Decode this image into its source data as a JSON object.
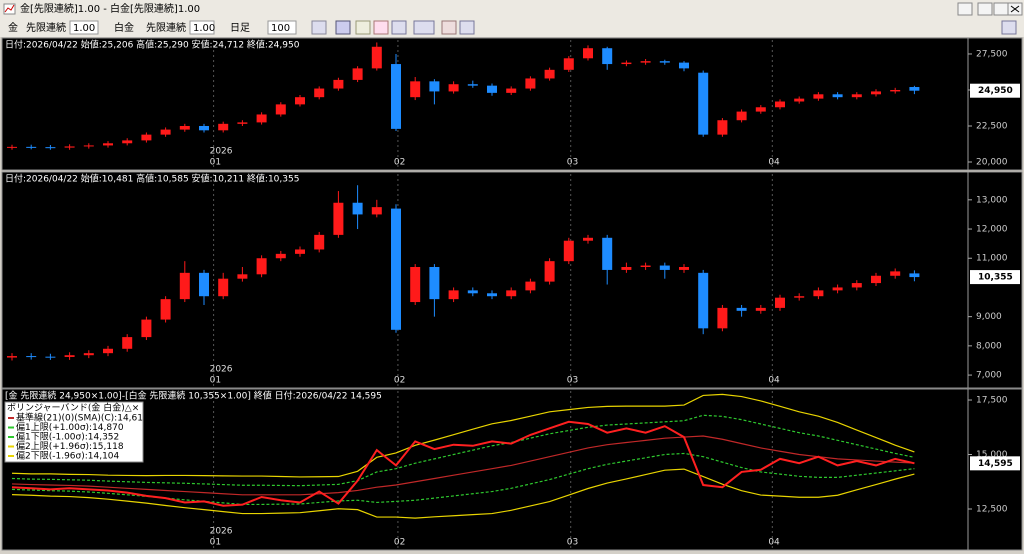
{
  "window": {
    "title": "金[先限連続]1.00 - 白金[先限連続]1.00"
  },
  "toolbar": {
    "symbol1": "金",
    "contract1": "先限連続",
    "mult1": "1.00",
    "symbol2": "白金",
    "contract2": "先限連続",
    "mult2": "1.00",
    "period": "日足",
    "count": "100"
  },
  "chart_data": [
    {
      "type": "candlestick",
      "header": "日付:2026/04/22 始値:25,206 高値:25,290 安値:24,712 終値:24,950",
      "up_color": "#ff1a1a",
      "down_color": "#1e8cff",
      "open": [
        21000,
        21050,
        21030,
        21000,
        21080,
        21150,
        21300,
        21500,
        21900,
        22250,
        22500,
        22200,
        22650,
        22750,
        23300,
        24000,
        24500,
        25100,
        25700,
        26500,
        26800,
        24500,
        25600,
        24900,
        25400,
        25300,
        24800,
        25100,
        25800,
        26400,
        27200,
        27900,
        26800,
        26900,
        27000,
        26900,
        26200,
        21900,
        22900,
        23500,
        23800,
        24200,
        24400,
        24700,
        24500,
        24700,
        24900,
        25206
      ],
      "high": [
        21200,
        21200,
        21180,
        21230,
        21300,
        21450,
        21650,
        22050,
        22400,
        22650,
        22650,
        22800,
        22900,
        23450,
        24150,
        24650,
        25250,
        25850,
        26650,
        28300,
        27500,
        25900,
        25750,
        25600,
        25650,
        25450,
        25250,
        25950,
        26550,
        27350,
        28100,
        28000,
        27050,
        27150,
        27100,
        27000,
        26350,
        23050,
        23650,
        23950,
        24350,
        24550,
        24850,
        24850,
        24850,
        25050,
        25150,
        25290
      ],
      "low": [
        20850,
        20880,
        20850,
        20850,
        20930,
        21000,
        21150,
        21350,
        21750,
        22100,
        22050,
        22050,
        22500,
        22600,
        23150,
        23850,
        24350,
        24950,
        25550,
        26350,
        22150,
        24300,
        24000,
        24750,
        25150,
        24600,
        24650,
        24950,
        25650,
        26250,
        27050,
        26400,
        26650,
        26750,
        26750,
        26300,
        21750,
        21750,
        22750,
        23350,
        23650,
        24050,
        24250,
        24350,
        24350,
        24550,
        24750,
        24712
      ],
      "close": [
        21050,
        21030,
        21000,
        21080,
        21150,
        21300,
        21500,
        21900,
        22250,
        22500,
        22200,
        22650,
        22750,
        23300,
        24000,
        24500,
        25100,
        25700,
        26500,
        28000,
        22300,
        25600,
        24900,
        25400,
        25300,
        24800,
        25100,
        25800,
        26400,
        27200,
        27900,
        26800,
        26900,
        27000,
        26900,
        26500,
        21900,
        22900,
        23500,
        23800,
        24200,
        24400,
        24700,
        24500,
        24700,
        24900,
        25000,
        24950
      ],
      "ylim": [
        20000,
        28470
      ],
      "yticks": [
        {
          "value": 20000,
          "label": "20,000"
        },
        {
          "value": 22500,
          "label": "22,500"
        },
        {
          "value": 25000,
          "label": "25,000"
        },
        {
          "value": 27500,
          "label": "27,500"
        }
      ],
      "xticks": [
        {
          "value": 10.5,
          "label": "01"
        },
        {
          "value": 20.1,
          "label": "02"
        },
        {
          "value": 29.1,
          "label": "03"
        },
        {
          "value": 39.6,
          "label": "04"
        }
      ],
      "year_label": "2026",
      "last_price": {
        "value": 24950,
        "label": "24,950"
      },
      "grid": "vertical"
    },
    {
      "type": "candlestick",
      "header": "日付:2026/04/22 始値:10,481 高値:10,585 安値:10,211 終値:10,355",
      "up_color": "#ff1a1a",
      "down_color": "#1e8cff",
      "open": [
        7600,
        7650,
        7630,
        7620,
        7680,
        7750,
        7900,
        8300,
        8900,
        9600,
        10500,
        9700,
        10300,
        10450,
        11000,
        11150,
        11300,
        11800,
        12900,
        12500,
        12700,
        9500,
        10700,
        9600,
        9900,
        9800,
        9700,
        9900,
        10200,
        10900,
        11600,
        11700,
        10600,
        10700,
        10750,
        10600,
        10500,
        8600,
        9300,
        9200,
        9300,
        9650,
        9700,
        9900,
        10000,
        10150,
        10400,
        10481
      ],
      "high": [
        7750,
        7750,
        7730,
        7780,
        7850,
        8000,
        8400,
        9000,
        9700,
        10900,
        10600,
        10500,
        10700,
        11100,
        11250,
        11400,
        11900,
        13300,
        13500,
        13000,
        12850,
        10800,
        10800,
        10000,
        10000,
        9900,
        10000,
        10300,
        11000,
        11700,
        11800,
        11800,
        10850,
        10850,
        10850,
        10800,
        10600,
        9400,
        9400,
        9400,
        9750,
        9800,
        10000,
        10100,
        10250,
        10500,
        10650,
        10585
      ],
      "low": [
        7500,
        7530,
        7520,
        7520,
        7580,
        7650,
        7800,
        8200,
        8800,
        9500,
        9400,
        9600,
        10200,
        10350,
        10900,
        11050,
        11200,
        11700,
        12000,
        12400,
        8450,
        9400,
        9000,
        9500,
        9700,
        9600,
        9600,
        9800,
        10100,
        10800,
        11500,
        10100,
        10500,
        10600,
        10300,
        10500,
        8400,
        8500,
        9000,
        9100,
        9200,
        9550,
        9600,
        9800,
        9900,
        10050,
        10300,
        10211
      ],
      "close": [
        7650,
        7630,
        7620,
        7680,
        7750,
        7900,
        8300,
        8900,
        9600,
        10500,
        9700,
        10300,
        10450,
        11000,
        11150,
        11300,
        11800,
        12900,
        12500,
        12750,
        8550,
        10700,
        9600,
        9900,
        9800,
        9700,
        9900,
        10200,
        10900,
        11600,
        11700,
        10600,
        10700,
        10750,
        10600,
        10700,
        8600,
        9300,
        9200,
        9300,
        9650,
        9700,
        9900,
        10000,
        10150,
        10400,
        10550,
        10355
      ],
      "ylim": [
        6660,
        13850
      ],
      "yticks": [
        {
          "value": 7000,
          "label": "7,000"
        },
        {
          "value": 8000,
          "label": "8,000"
        },
        {
          "value": 9000,
          "label": "9,000"
        },
        {
          "value": 11000,
          "label": "11,000"
        },
        {
          "value": 12000,
          "label": "12,000"
        },
        {
          "value": 13000,
          "label": "13,000"
        }
      ],
      "xticks": [
        {
          "value": 10.5,
          "label": "01"
        },
        {
          "value": 20.1,
          "label": "02"
        },
        {
          "value": 29.1,
          "label": "03"
        },
        {
          "value": 39.6,
          "label": "04"
        }
      ],
      "year_label": "2026",
      "last_price": {
        "value": 10355,
        "label": "10,355"
      },
      "grid": "vertical"
    },
    {
      "type": "line",
      "header": "[金 先限連続 24,950×1.00]-[白金 先限連続 10,355×1.00] 終値 日付:2026/04/22 14,595",
      "legend_title": "ボリンジャーバンド(金 白金)△×",
      "color": "#ff2020",
      "values": [
        13500,
        13450,
        13400,
        13450,
        13400,
        13350,
        13250,
        13100,
        13000,
        12800,
        12850,
        12650,
        12700,
        13050,
        12900,
        12800,
        13300,
        12750,
        13800,
        15200,
        14500,
        15600,
        15250,
        15450,
        15400,
        15600,
        15500,
        15900,
        16200,
        16500,
        16400,
        16000,
        16200,
        16000,
        16300,
        15800,
        13600,
        13500,
        14200,
        14300,
        14800,
        14600,
        14900,
        14500,
        14700,
        14500,
        14800,
        14595
      ],
      "series": [
        {
          "name": "基準線(21)(0)(SMA)(C):14,611",
          "color": "#c02828",
          "dashed": false,
          "values": [
            13650,
            13620,
            13600,
            13580,
            13550,
            13500,
            13450,
            13400,
            13350,
            13300,
            13250,
            13200,
            13150,
            13150,
            13150,
            13150,
            13200,
            13250,
            13350,
            13500,
            13600,
            13750,
            13900,
            14050,
            14200,
            14350,
            14500,
            14700,
            14900,
            15100,
            15300,
            15450,
            15550,
            15650,
            15750,
            15800,
            15850,
            15700,
            15500,
            15300,
            15150,
            15000,
            14900,
            14800,
            14750,
            14700,
            14650,
            14611
          ]
        },
        {
          "name": "偏1上限(+1.00σ):14,870",
          "color": "#2ec82e",
          "dashed": true,
          "values": [
            13900,
            13870,
            13860,
            13840,
            13820,
            13780,
            13750,
            13720,
            13700,
            13680,
            13650,
            13620,
            13590,
            13590,
            13580,
            13570,
            13600,
            13630,
            13800,
            14200,
            14350,
            14600,
            14800,
            15000,
            15200,
            15400,
            15550,
            15750,
            15950,
            16100,
            16250,
            16350,
            16400,
            16450,
            16500,
            16550,
            16800,
            16750,
            16600,
            16400,
            16200,
            16000,
            15850,
            15650,
            15450,
            15250,
            15050,
            14870
          ]
        },
        {
          "name": "偏1下限(-1.00σ):14,352",
          "color": "#2ec82e",
          "dashed": true,
          "values": [
            13400,
            13370,
            13340,
            13320,
            13280,
            13220,
            13150,
            13080,
            13000,
            12920,
            12850,
            12780,
            12710,
            12710,
            12720,
            12730,
            12800,
            12870,
            12900,
            12800,
            12850,
            12900,
            13000,
            13100,
            13200,
            13300,
            13450,
            13650,
            13850,
            14100,
            14350,
            14550,
            14700,
            14850,
            15000,
            15050,
            14900,
            14650,
            14400,
            14200,
            14100,
            14000,
            13950,
            13950,
            14050,
            14150,
            14250,
            14352
          ]
        },
        {
          "name": "偏2上限(+1.96σ):15,118",
          "color": "#e8d400",
          "dashed": false,
          "values": [
            14140,
            14110,
            14110,
            14090,
            14080,
            14050,
            14040,
            14030,
            14040,
            14040,
            14030,
            14020,
            14010,
            14010,
            13990,
            13970,
            13980,
            13990,
            14230,
            14870,
            15070,
            15420,
            15660,
            15910,
            16160,
            16410,
            16560,
            16760,
            16960,
            17060,
            17160,
            17210,
            17220,
            17220,
            17220,
            17270,
            17710,
            17760,
            17660,
            17460,
            17210,
            16960,
            16760,
            16470,
            16120,
            15780,
            15430,
            15118
          ]
        },
        {
          "name": "偏2下限(-1.96σ):14,104",
          "color": "#e8d400",
          "dashed": false,
          "values": [
            13160,
            13130,
            13090,
            13070,
            13020,
            12950,
            12860,
            12770,
            12660,
            12560,
            12470,
            12380,
            12290,
            12290,
            12310,
            12330,
            12420,
            12510,
            12470,
            12130,
            12130,
            12080,
            12140,
            12190,
            12240,
            12290,
            12440,
            12640,
            12840,
            13140,
            13440,
            13690,
            13880,
            14080,
            14280,
            14330,
            13990,
            13640,
            13340,
            13140,
            13090,
            13040,
            13040,
            13130,
            13380,
            13620,
            13870,
            14104
          ]
        }
      ],
      "ylim": [
        10710,
        17960
      ],
      "yticks": [
        {
          "value": 12500,
          "label": "12,500"
        },
        {
          "value": 15000,
          "label": "15,000"
        },
        {
          "value": 17500,
          "label": "17,500"
        }
      ],
      "xticks": [
        {
          "value": 10.5,
          "label": "01"
        },
        {
          "value": 20.1,
          "label": "02"
        },
        {
          "value": 29.1,
          "label": "03"
        },
        {
          "value": 39.6,
          "label": "04"
        }
      ],
      "year_label": "2026",
      "last_price": {
        "value": 14595,
        "label": "14,595"
      },
      "grid": "vertical"
    }
  ]
}
